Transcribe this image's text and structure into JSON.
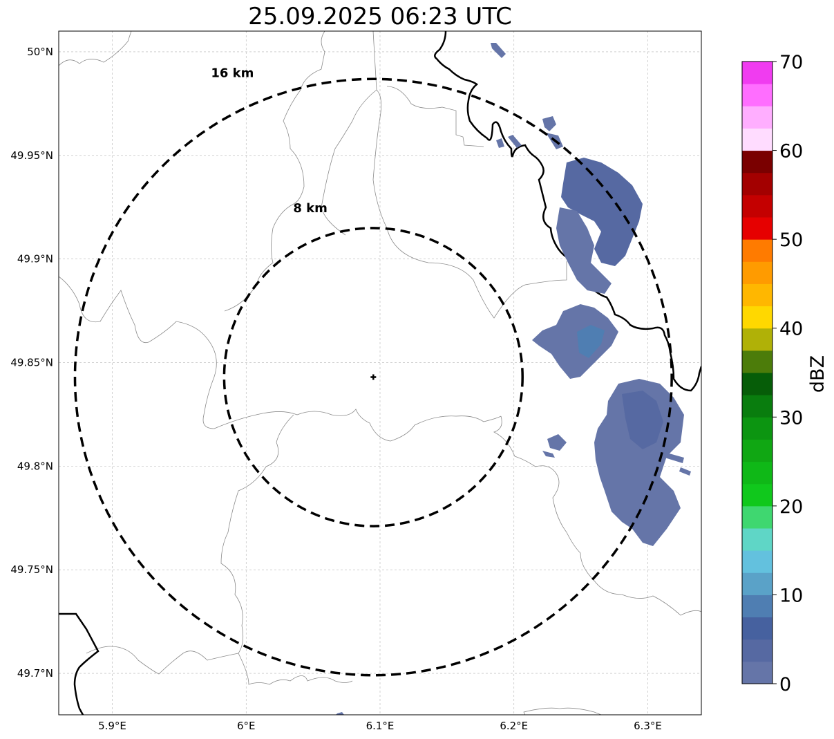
{
  "title": "25.09.2025 06:23 UTC",
  "map": {
    "lat_ticks": [
      "50°N",
      "49.95°N",
      "49.9°N",
      "49.85°N",
      "49.8°N",
      "49.75°N",
      "49.7°N"
    ],
    "lon_ticks": [
      "5.9°E",
      "6°E",
      "6.1°E",
      "6.2°E",
      "6.3°E"
    ],
    "lat_tick_values": [
      50.0,
      49.95,
      49.9,
      49.85,
      49.8,
      49.75,
      49.7
    ],
    "lon_tick_values": [
      5.9,
      6.0,
      6.1,
      6.2,
      6.3
    ],
    "lon_range": [
      5.86,
      6.34
    ],
    "lat_range": [
      49.68,
      50.01
    ],
    "grid": true,
    "range_rings": [
      {
        "label": "16 km",
        "radius_km": 16
      },
      {
        "label": "8 km",
        "radius_km": 8
      }
    ],
    "radar_site": {
      "lon": 6.095,
      "lat": 49.843,
      "marker": "plus"
    }
  },
  "colorbar": {
    "label": "dBZ",
    "ticks": [
      "0",
      "10",
      "20",
      "30",
      "40",
      "50",
      "60",
      "70"
    ],
    "range": [
      0,
      70
    ],
    "step": 2.5,
    "colors": [
      "#6575a8",
      "#5669a2",
      "#46619f",
      "#4f7eb2",
      "#5aa2c8",
      "#63c1de",
      "#5fd6c6",
      "#3fd770",
      "#10c81c",
      "#0fb817",
      "#10a713",
      "#0c9511",
      "#097d0e",
      "#065d08",
      "#4c7c0a",
      "#b0b107",
      "#ffd800",
      "#ffb700",
      "#ff9b00",
      "#ff7b00",
      "#e60000",
      "#c40000",
      "#a30000",
      "#7a0000",
      "#ffdcff",
      "#ffaeff",
      "#ff6eff",
      "#f03cf0"
    ]
  }
}
